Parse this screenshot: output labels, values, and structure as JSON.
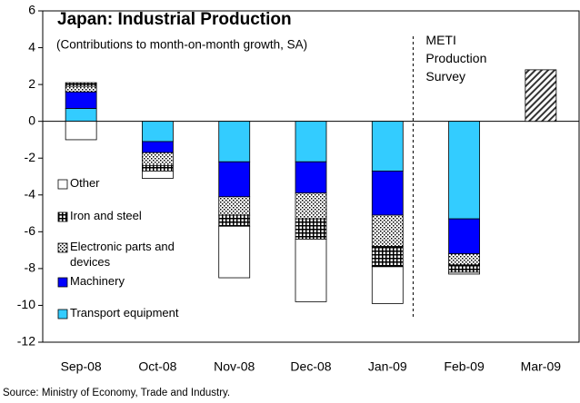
{
  "chart_data": {
    "type": "stacked_bar",
    "title": "Japan: Industrial Production",
    "subtitle": "(Contributions to month-on-month growth, SA)",
    "source": "Source: Ministry of Economy, Trade and Industry.",
    "annotation": "METI Production Survey",
    "categories": [
      "Sep-08",
      "Oct-08",
      "Nov-08",
      "Dec-08",
      "Jan-09",
      "Feb-09",
      "Mar-09"
    ],
    "series": [
      {
        "name": "Transport equipment",
        "color": "#33ccff",
        "values": [
          0.7,
          -1.1,
          -2.2,
          -2.2,
          -2.7,
          -5.3,
          null
        ]
      },
      {
        "name": "Machinery",
        "color": "#0000ff",
        "values": [
          0.9,
          -0.6,
          -1.9,
          -1.7,
          -2.4,
          -1.9,
          null
        ]
      },
      {
        "name": "Electronic parts and devices",
        "color": "#ffffff",
        "pattern": "dots",
        "values": [
          0.3,
          -0.7,
          -1.0,
          -1.4,
          -1.7,
          -0.6,
          null
        ]
      },
      {
        "name": "Iron and steel",
        "color": "#ffffff",
        "pattern": "grid",
        "values": [
          0.2,
          -0.3,
          -0.6,
          -1.1,
          -1.1,
          -0.4,
          null
        ]
      },
      {
        "name": "Other",
        "color": "#ffffff",
        "values": [
          -1.0,
          -0.4,
          -2.8,
          -3.4,
          -2.0,
          -0.1,
          null
        ]
      },
      {
        "name": "METI Production Survey",
        "color": "#ffffff",
        "pattern": "hatch",
        "legend": false,
        "values": [
          null,
          null,
          null,
          null,
          null,
          null,
          2.8
        ]
      }
    ],
    "ylim": [
      -12,
      6
    ],
    "yticks": [
      -12,
      -10,
      -8,
      -6,
      -4,
      -2,
      0,
      2,
      4,
      6
    ],
    "grid": false
  }
}
